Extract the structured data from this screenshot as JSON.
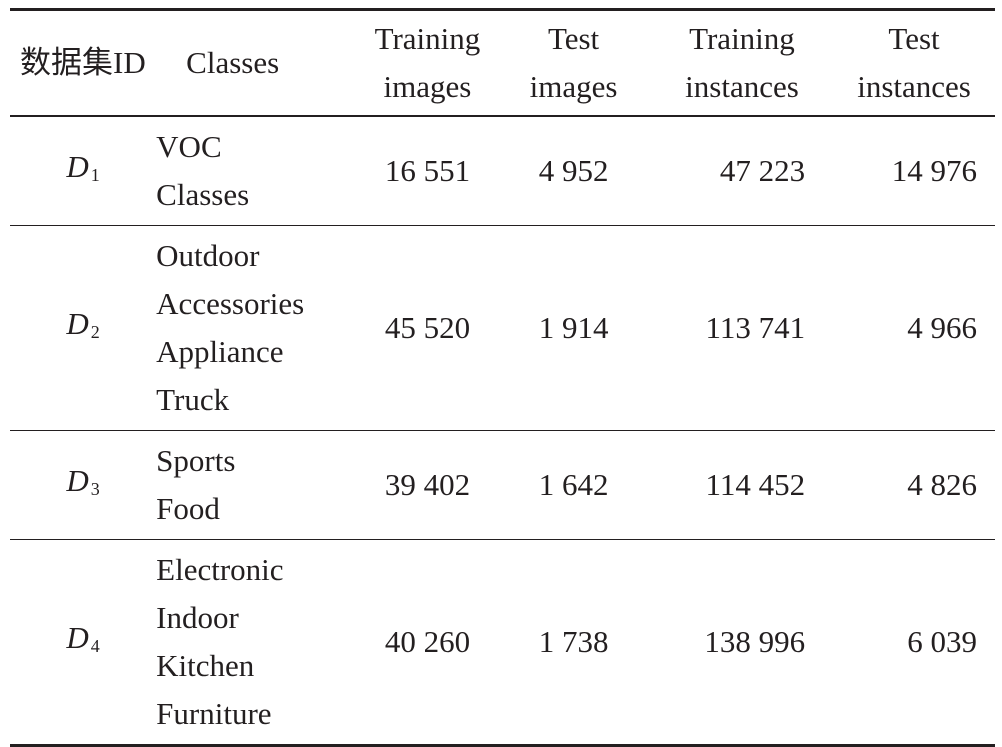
{
  "table": {
    "header": [
      [
        "数据集ID"
      ],
      [
        "Classes"
      ],
      [
        "Training",
        "images"
      ],
      [
        "Test",
        "images"
      ],
      [
        "Training",
        "instances"
      ],
      [
        "Test",
        "instances"
      ]
    ],
    "rows": [
      [
        {
          "letter": "D",
          "sub": "1"
        },
        [
          "VOC",
          "Classes"
        ],
        "16 551",
        "4 952",
        "47 223",
        "14 976"
      ],
      [
        {
          "letter": "D",
          "sub": "2"
        },
        [
          "Outdoor",
          "Accessories",
          "Appliance",
          "Truck"
        ],
        "45 520",
        "1 914",
        "113 741",
        "4 966"
      ],
      [
        {
          "letter": "D",
          "sub": "3"
        },
        [
          "Sports",
          "Food"
        ],
        "39 402",
        "1 642",
        "114 452",
        "4 826"
      ],
      [
        {
          "letter": "D",
          "sub": "4"
        },
        [
          "Electronic",
          "Indoor",
          "Kitchen",
          "Furniture"
        ],
        "40 260",
        "1 738",
        "138 996",
        "6 039"
      ]
    ]
  }
}
